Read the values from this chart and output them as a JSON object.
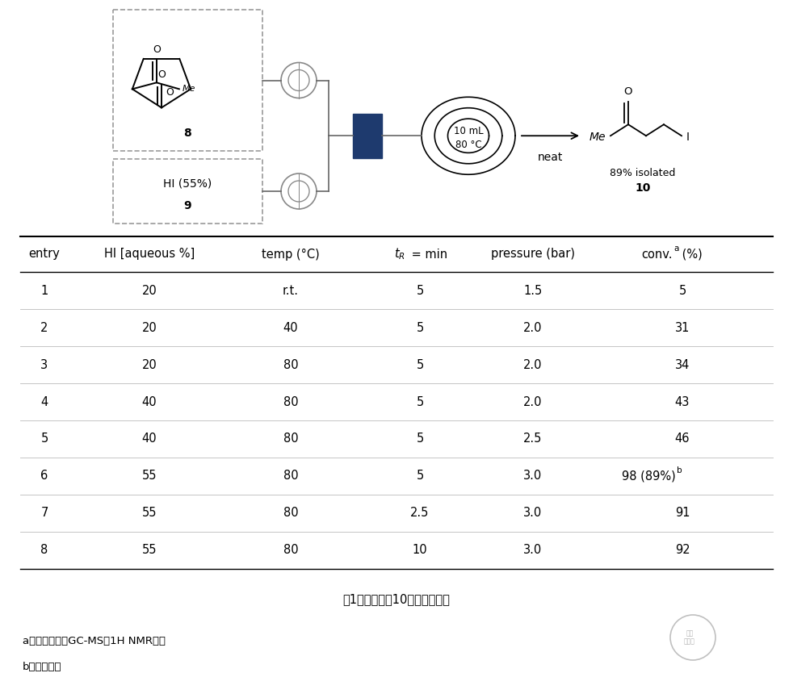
{
  "title_caption": "表1：化合物（10）的工艺优化",
  "footnote_a": "a：转化率通过GC-MS和1H NMR确定",
  "footnote_b": "b：分离收率",
  "table_headers_plain": [
    "entry",
    "HI [aqueous %]",
    "temp (°C)",
    "tR = min",
    "pressure (bar)",
    "conv.a (%)"
  ],
  "table_data": [
    [
      "1",
      "20",
      "r.t.",
      "5",
      "1.5",
      "5"
    ],
    [
      "2",
      "20",
      "40",
      "5",
      "2.0",
      "31"
    ],
    [
      "3",
      "20",
      "80",
      "5",
      "2.0",
      "34"
    ],
    [
      "4",
      "40",
      "80",
      "5",
      "2.0",
      "43"
    ],
    [
      "5",
      "40",
      "80",
      "5",
      "2.5",
      "46"
    ],
    [
      "6",
      "55",
      "80",
      "5",
      "3.0",
      "98 (89%)b"
    ],
    [
      "7",
      "55",
      "80",
      "2.5",
      "3.0",
      "91"
    ],
    [
      "8",
      "55",
      "80",
      "10",
      "3.0",
      "92"
    ]
  ],
  "bg_color": "#ffffff",
  "text_color": "#000000",
  "header_fontsize": 10.5,
  "data_fontsize": 10.5,
  "mixer_color": "#1e3a6e",
  "line_gray": "#666666",
  "dashed_gray": "#999999"
}
